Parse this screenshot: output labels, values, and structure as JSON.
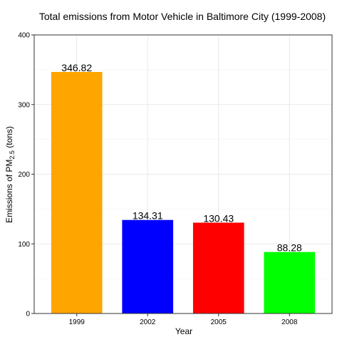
{
  "chart_data": {
    "type": "bar",
    "title": "Total emissions from Motor Vehicle in Baltimore City (1999-2008)",
    "xlabel": "Year",
    "ylabel": {
      "prefix": "Emissions of PM",
      "subscript": "2.5",
      "suffix": " (tons)"
    },
    "categories": [
      "1999",
      "2002",
      "2005",
      "2008"
    ],
    "values": [
      346.82,
      134.31,
      130.43,
      88.28
    ],
    "data_labels": [
      "346.82",
      "134.31",
      "130.43",
      "88.28"
    ],
    "colors": [
      "#FFA500",
      "#0000FF",
      "#FF0000",
      "#00FF00"
    ],
    "ylim": [
      0,
      400
    ],
    "yticks": [
      0,
      100,
      200,
      300,
      400
    ],
    "ytick_labels": [
      "0",
      "100",
      "200",
      "300",
      "400"
    ],
    "grid": true,
    "legend": "none"
  }
}
